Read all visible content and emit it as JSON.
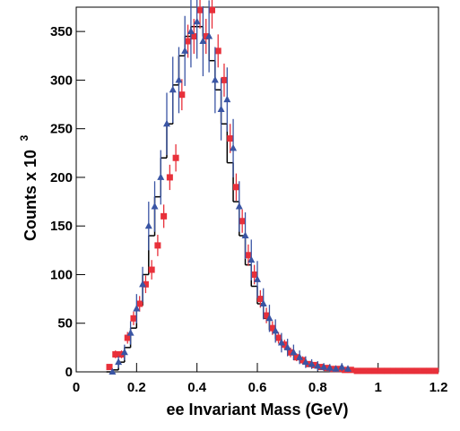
{
  "chart_data": {
    "type": "scatter",
    "x_label": "ee Invariant Mass (GeV)",
    "y_label": "Counts x 10",
    "y_label_exponent": "3",
    "xlim": [
      0,
      1.2
    ],
    "xticks": [
      0,
      0.2,
      0.4,
      0.6,
      0.8,
      1,
      1.2
    ],
    "ylim": [
      0,
      375
    ],
    "yticks": [
      0,
      50,
      100,
      150,
      200,
      250,
      300,
      350
    ],
    "series": [
      {
        "marker": "square",
        "color": "#e8303a",
        "x": [
          0.11,
          0.13,
          0.15,
          0.17,
          0.19,
          0.21,
          0.23,
          0.25,
          0.27,
          0.29,
          0.31,
          0.33,
          0.35,
          0.37,
          0.39,
          0.41,
          0.43,
          0.45,
          0.47,
          0.49,
          0.51,
          0.53,
          0.55,
          0.57,
          0.59,
          0.61,
          0.63,
          0.65,
          0.67,
          0.69,
          0.71,
          0.73,
          0.75,
          0.77,
          0.79,
          0.81,
          0.83,
          0.85,
          0.87,
          0.89,
          0.91,
          0.93,
          0.95,
          0.97,
          0.99,
          1.01,
          1.03,
          1.05,
          1.07,
          1.09,
          1.11,
          1.13,
          1.15,
          1.17,
          1.19
        ],
        "values": [
          5,
          18,
          18,
          35,
          55,
          70,
          90,
          105,
          130,
          160,
          200,
          220,
          285,
          340,
          345,
          372,
          345,
          372,
          330,
          300,
          240,
          190,
          155,
          120,
          100,
          75,
          58,
          45,
          35,
          28,
          20,
          15,
          12,
          8,
          7,
          5,
          4,
          3,
          3,
          2,
          2,
          1,
          1,
          1,
          1,
          1,
          1,
          1,
          1,
          1,
          1,
          1,
          1,
          1,
          1
        ],
        "errors": [
          3,
          4,
          4,
          6,
          7,
          8,
          9,
          10,
          11,
          12,
          13,
          14,
          16,
          17,
          18,
          19,
          18,
          19,
          17,
          17,
          15,
          14,
          12,
          11,
          10,
          9,
          8,
          7,
          6,
          5,
          5,
          4,
          4,
          3,
          3,
          2,
          2,
          2,
          2,
          1,
          1,
          1,
          1,
          1,
          1,
          1,
          1,
          1,
          1,
          1,
          1,
          1,
          1,
          1,
          1
        ]
      },
      {
        "marker": "triangle",
        "color": "#3a55a4",
        "x": [
          0.12,
          0.14,
          0.16,
          0.18,
          0.2,
          0.22,
          0.24,
          0.26,
          0.28,
          0.3,
          0.32,
          0.34,
          0.36,
          0.38,
          0.4,
          0.42,
          0.44,
          0.46,
          0.48,
          0.5,
          0.52,
          0.54,
          0.56,
          0.58,
          0.6,
          0.62,
          0.64,
          0.66,
          0.68,
          0.7,
          0.72,
          0.74,
          0.76,
          0.78,
          0.8,
          0.82,
          0.84,
          0.86,
          0.88,
          0.9
        ],
        "values": [
          0,
          10,
          20,
          40,
          65,
          90,
          150,
          170,
          200,
          255,
          290,
          300,
          330,
          350,
          360,
          340,
          345,
          300,
          270,
          280,
          230,
          170,
          140,
          115,
          95,
          70,
          55,
          42,
          30,
          25,
          20,
          15,
          10,
          8,
          6,
          5,
          4,
          3,
          5,
          3
        ],
        "errors": [
          2,
          6,
          8,
          12,
          15,
          18,
          25,
          26,
          28,
          32,
          34,
          34,
          36,
          37,
          38,
          36,
          37,
          34,
          32,
          33,
          30,
          26,
          24,
          21,
          19,
          16,
          14,
          12,
          10,
          9,
          8,
          7,
          6,
          5,
          5,
          4,
          4,
          3,
          4,
          3
        ]
      }
    ],
    "histogram": {
      "color": "#000000",
      "bins": [
        0.1,
        0.12,
        0.14,
        0.16,
        0.18,
        0.2,
        0.22,
        0.24,
        0.26,
        0.28,
        0.3,
        0.32,
        0.34,
        0.36,
        0.38,
        0.4,
        0.42,
        0.44,
        0.46,
        0.48,
        0.5,
        0.52,
        0.54,
        0.56,
        0.58,
        0.6,
        0.62,
        0.64,
        0.66,
        0.68,
        0.7,
        0.72,
        0.74,
        0.76,
        0.78,
        0.8,
        0.82,
        0.84,
        0.86,
        0.88,
        0.9,
        0.92,
        0.94,
        0.96,
        0.98,
        1
      ],
      "counts": [
        0,
        2,
        10,
        25,
        45,
        68,
        100,
        140,
        180,
        220,
        255,
        295,
        325,
        345,
        355,
        355,
        345,
        320,
        290,
        255,
        215,
        175,
        140,
        110,
        88,
        70,
        55,
        43,
        34,
        27,
        21,
        17,
        13,
        10,
        8,
        6,
        5,
        4,
        3,
        2,
        2,
        1,
        1,
        1,
        0
      ]
    }
  }
}
